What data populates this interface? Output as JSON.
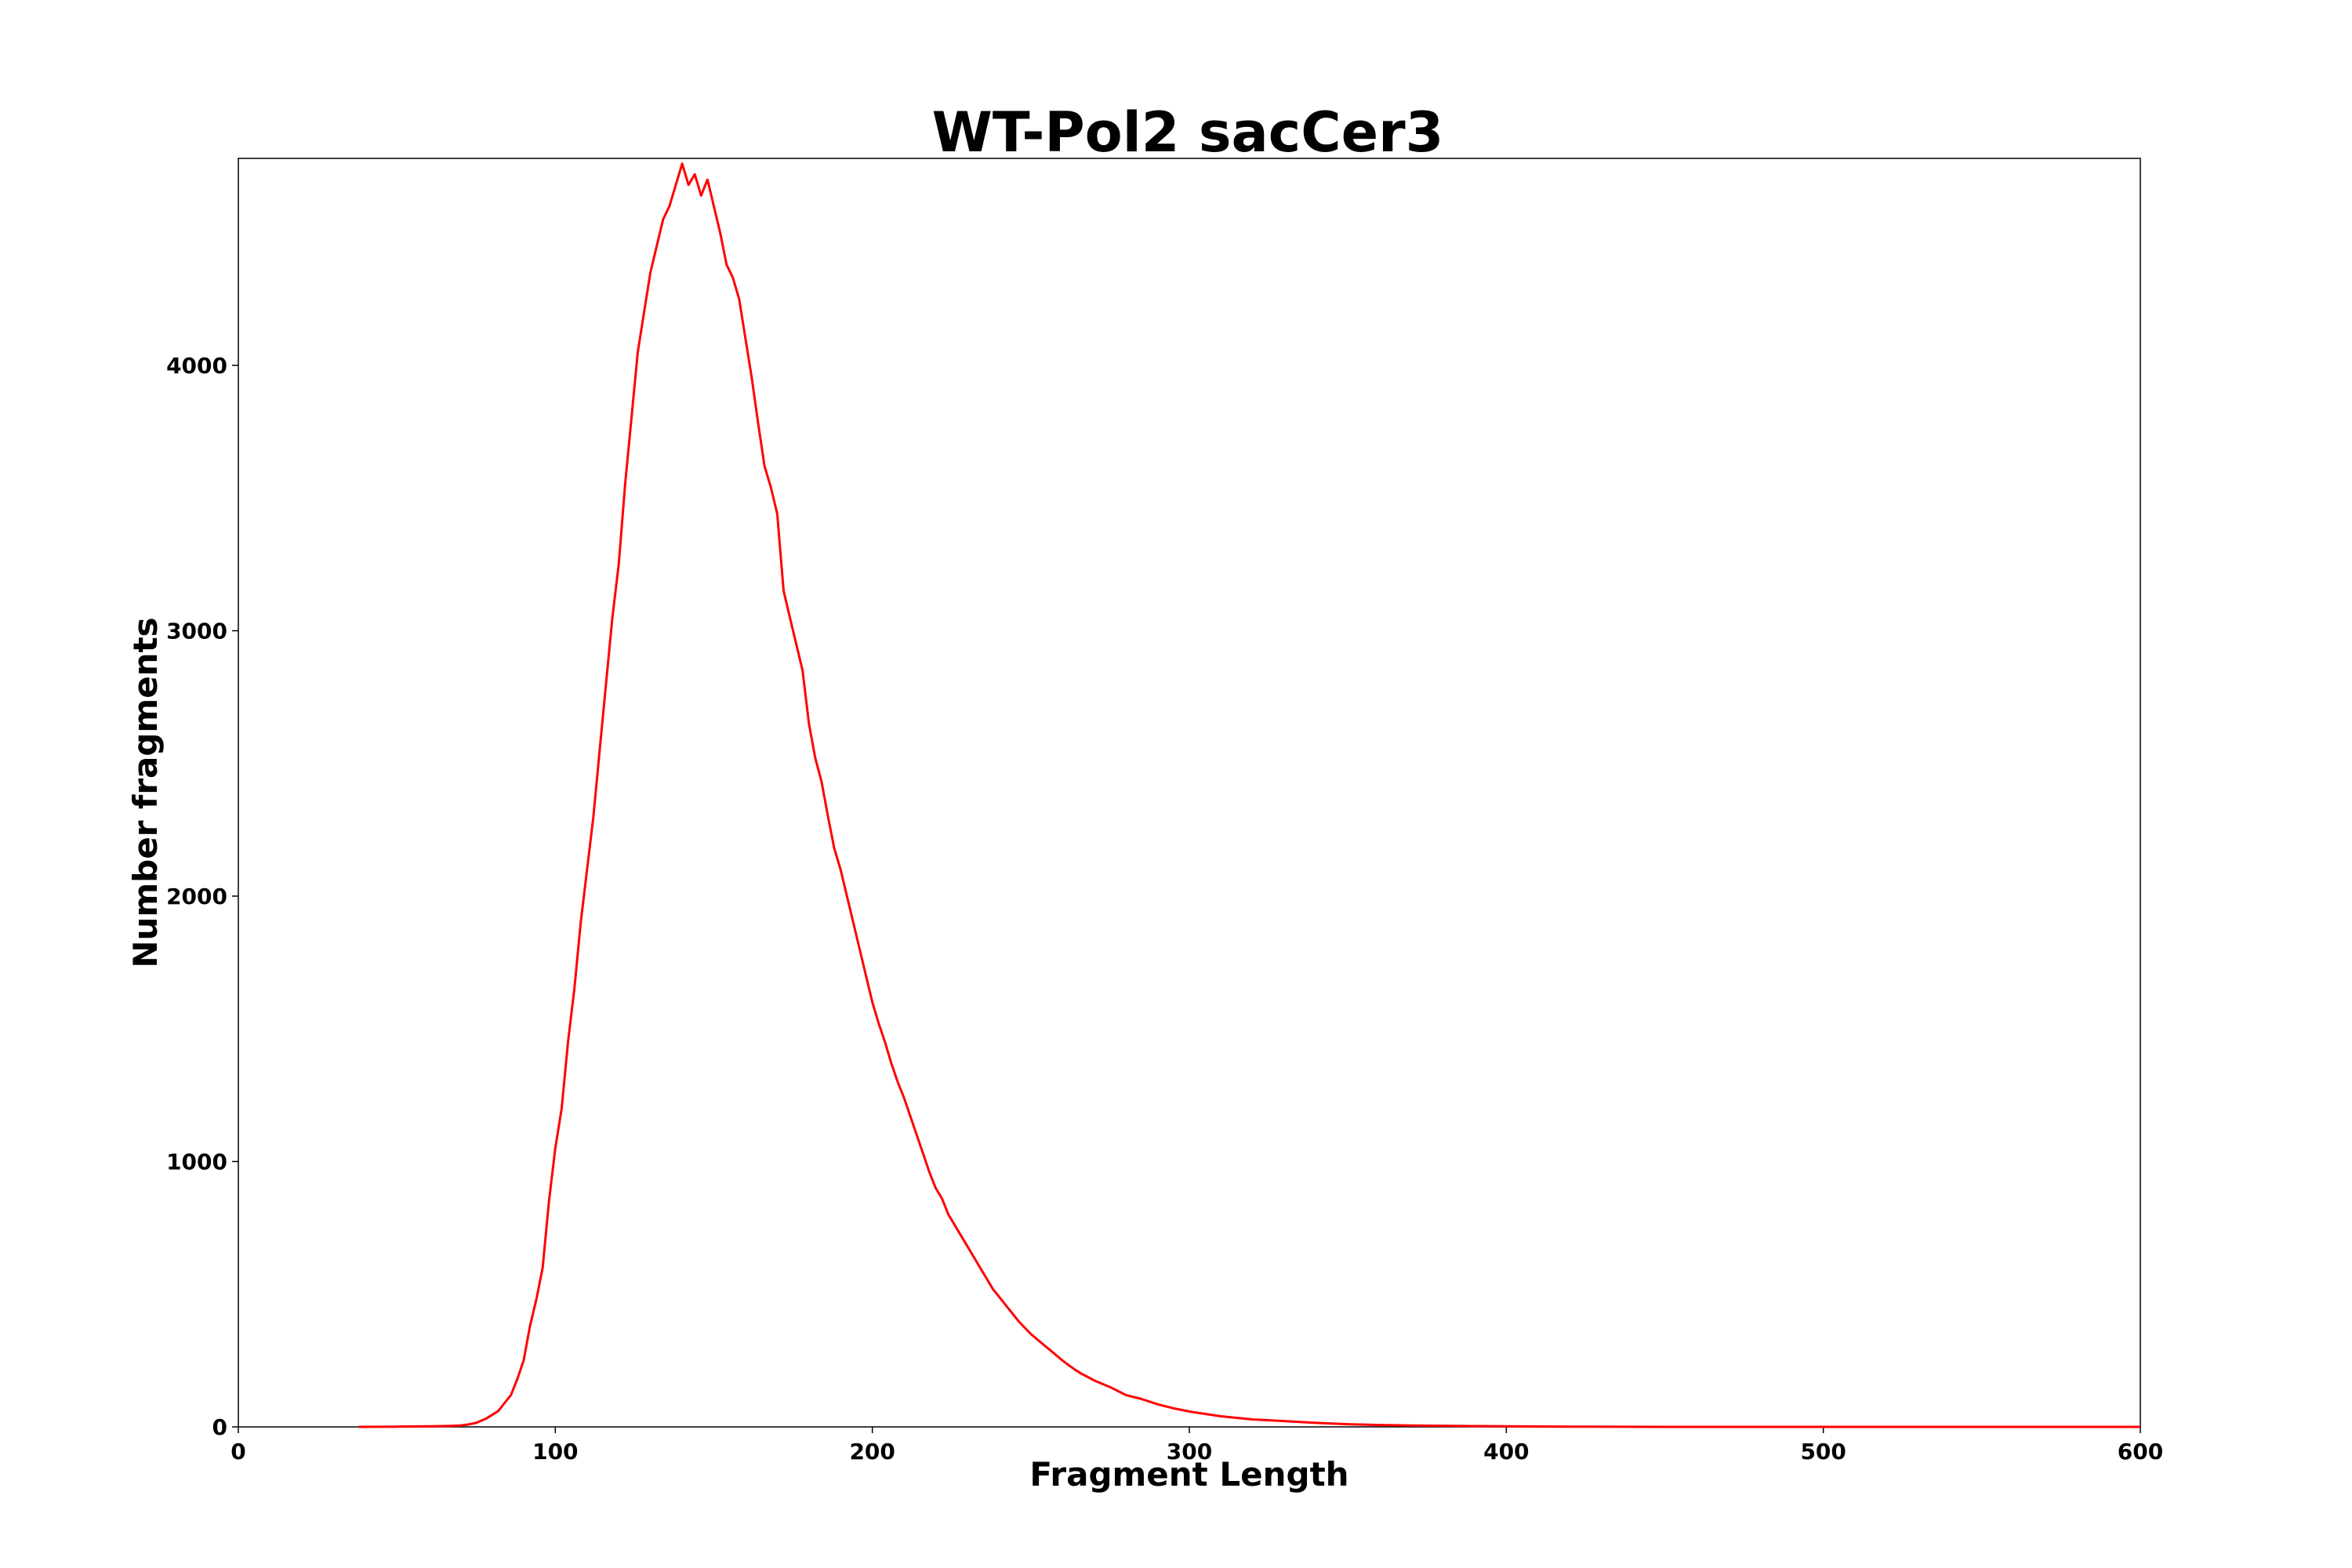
{
  "chart_data": {
    "type": "line",
    "title": "WT-Pol2 sacCer3",
    "xlabel": "Fragment Length",
    "ylabel": "Number fragments",
    "xlim": [
      0,
      600
    ],
    "ylim": [
      0,
      4780
    ],
    "xticks": [
      0,
      100,
      200,
      300,
      400,
      500,
      600
    ],
    "yticks": [
      0,
      1000,
      2000,
      3000,
      4000
    ],
    "grid": false,
    "line_color": "#ff0000",
    "series": [
      {
        "x": [
          38,
          50,
          60,
          65,
          70,
          72,
          75,
          78,
          80,
          82,
          84,
          86,
          88,
          90,
          92,
          94,
          96,
          98,
          100,
          102,
          104,
          106,
          108,
          110,
          112,
          114,
          116,
          118,
          120,
          122,
          124,
          126,
          128,
          130,
          132,
          134,
          136,
          138,
          140,
          142,
          144,
          146,
          148,
          150,
          152,
          154,
          156,
          158,
          160,
          162,
          164,
          166,
          168,
          170,
          172,
          174,
          176,
          178,
          180,
          182,
          184,
          186,
          188,
          190,
          192,
          194,
          196,
          198,
          200,
          202,
          204,
          206,
          208,
          210,
          212,
          214,
          216,
          218,
          220,
          222,
          224,
          226,
          228,
          230,
          232,
          234,
          236,
          238,
          240,
          242,
          244,
          246,
          248,
          250,
          252,
          254,
          256,
          258,
          260,
          262,
          264,
          266,
          268,
          270,
          275,
          280,
          285,
          290,
          295,
          300,
          310,
          320,
          330,
          340,
          350,
          360,
          370,
          380,
          390,
          400,
          420,
          450,
          500,
          550,
          600
        ],
        "y": [
          0,
          1,
          2,
          3,
          5,
          8,
          15,
          30,
          45,
          60,
          90,
          120,
          180,
          250,
          380,
          480,
          600,
          850,
          1050,
          1200,
          1450,
          1650,
          1900,
          2100,
          2300,
          2550,
          2800,
          3050,
          3250,
          3550,
          3800,
          4050,
          4200,
          4350,
          4450,
          4550,
          4600,
          4680,
          4760,
          4680,
          4720,
          4640,
          4700,
          4600,
          4500,
          4380,
          4330,
          4250,
          4100,
          3950,
          3780,
          3620,
          3540,
          3440,
          3150,
          3050,
          2950,
          2850,
          2650,
          2520,
          2430,
          2300,
          2180,
          2100,
          2000,
          1900,
          1800,
          1700,
          1600,
          1520,
          1450,
          1370,
          1300,
          1240,
          1170,
          1100,
          1030,
          960,
          900,
          860,
          800,
          760,
          720,
          680,
          640,
          600,
          560,
          520,
          490,
          460,
          430,
          400,
          375,
          350,
          330,
          310,
          290,
          270,
          250,
          232,
          215,
          200,
          188,
          175,
          150,
          120,
          105,
          85,
          70,
          58,
          40,
          28,
          22,
          15,
          10,
          7,
          5,
          4,
          3,
          2,
          1,
          0,
          0,
          0,
          0
        ]
      }
    ]
  }
}
